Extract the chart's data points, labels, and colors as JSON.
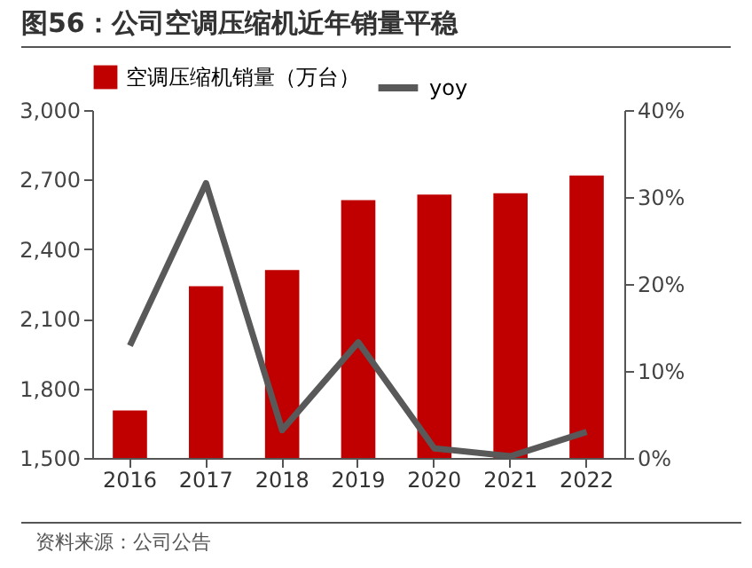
{
  "chart_data": {
    "type": "bar",
    "title": "图56：公司空调压缩机近年销量平稳",
    "categories": [
      "2016",
      "2017",
      "2018",
      "2019",
      "2020",
      "2021",
      "2022"
    ],
    "series": [
      {
        "name": "空调压缩机销量（万台）",
        "color": "#c00000",
        "values": [
          1705,
          2240,
          2310,
          2612,
          2636,
          2641,
          2718
        ]
      },
      {
        "name": "yoy",
        "type": "line",
        "axis": "y2",
        "color": "#595959",
        "values": [
          12.9,
          31.6,
          3.2,
          13.3,
          1.1,
          0.2,
          3.0
        ]
      }
    ],
    "ylim": [
      1500,
      3000
    ],
    "yticks": [
      {
        "value": 1500,
        "label": "1,500"
      },
      {
        "value": 1800,
        "label": "1,800"
      },
      {
        "value": 2100,
        "label": "2,100"
      },
      {
        "value": 2400,
        "label": "2,400"
      },
      {
        "value": 2700,
        "label": "2,700"
      },
      {
        "value": 3000,
        "label": "3,000"
      }
    ],
    "y2lim": [
      0,
      40
    ],
    "y2ticks": [
      {
        "value": 0,
        "label": "0%"
      },
      {
        "value": 10,
        "label": "10%"
      },
      {
        "value": 20,
        "label": "20%"
      },
      {
        "value": 30,
        "label": "30%"
      },
      {
        "value": 40,
        "label": "40%"
      }
    ],
    "grid": false,
    "legend": "top",
    "marker": "none",
    "line_style": "solid",
    "annotations": [
      "资料来源：公司公告"
    ]
  }
}
